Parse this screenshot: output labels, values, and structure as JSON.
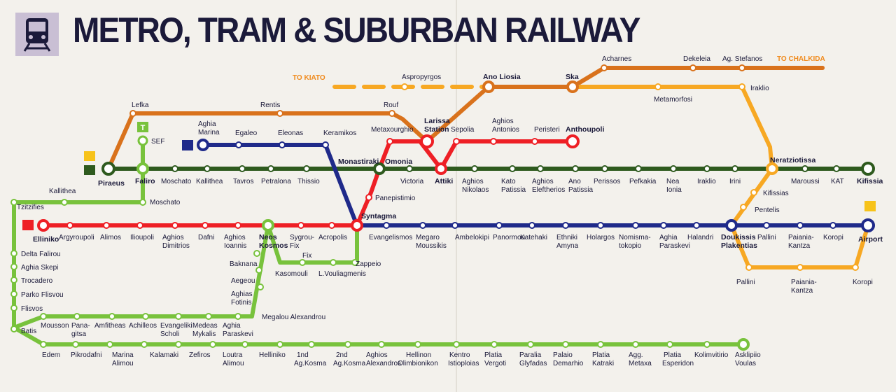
{
  "title": "METRO, TRAM & SUBURBAN RAILWAY",
  "colors": {
    "metro_line_1": "#2e5a1e",
    "metro_line_2": "#ee1f25",
    "metro_line_3": "#1f2a8a",
    "tram": "#78c23c",
    "suburban": "#f7a823",
    "suburban_west": "#d9721c",
    "background": "#f3f1ec"
  },
  "icons": [
    "train-icon",
    "tram-icon",
    "metro-icon"
  ],
  "tram_badge": "T",
  "stations": {
    "to_kiato": "TO KIATO",
    "to_chalkida": "TO CHALKIDA",
    "aspropyrgos": "Aspropyrgos",
    "ano_liosia": "Ano Liosia",
    "ska": "Ska",
    "acharnes": "Acharnes",
    "dekeleia": "Dekeleia",
    "ag_stefanos": "Ag. Stefanos",
    "metamorfosi": "Metamorfosi",
    "iraklio_sub": "Iraklio",
    "lefka": "Lefka",
    "rentis": "Rentis",
    "rouf": "Rouf",
    "larissa_1": "Larissa",
    "larissa_2": "Station",
    "sepolia": "Sepolia",
    "aghios_antonios_1": "Aghios",
    "aghios_antonios_2": "Antonios",
    "peristeri": "Peristeri",
    "anthoupoli": "Anthoupoli",
    "metaxourghio": "Metaxourghio",
    "aghia_marina_1": "Aghia",
    "aghia_marina_2": "Marina",
    "egaleo": "Egaleo",
    "eleonas": "Eleonas",
    "keramikos": "Keramikos",
    "sef": "SEF",
    "piraeus": "Piraeus",
    "faliro": "Faliro",
    "moschato": "Moschato",
    "kallithea": "Kallithea",
    "tavros": "Tavros",
    "petralona": "Petralona",
    "thissio": "Thissio",
    "monastiraki": "Monastiraki",
    "omonia": "Omonia",
    "victoria": "Victoria",
    "attiki": "Attiki",
    "aghios_nikolaos_1": "Aghios",
    "aghios_nikolaos_2": "Nikolaos",
    "kato_patissia_1": "Kato",
    "kato_patissia_2": "Patissia",
    "aghios_eleftherios_1": "Aghios",
    "aghios_eleftherios_2": "Eleftherios",
    "ano_patissia_1": "Ano",
    "ano_patissia_2": "Patissia",
    "perissos": "Perissos",
    "pefkakia": "Pefkakia",
    "nea_ionia_1": "Nea",
    "nea_ionia_2": "Ionia",
    "iraklio": "Iraklio",
    "irini": "Irini",
    "neratziotissa": "Neratziotissa",
    "maroussi": "Maroussi",
    "kat": "KAT",
    "kifissia": "Kifissia",
    "kifissias": "Kifissias",
    "pentelis": "Pentelis",
    "panepistimio": "Panepistimio",
    "syntagma": "Syntagma",
    "moschato_tram": "Moschato",
    "kallithea_tram": "Kallithea",
    "tzitzifies": "Tzitzifies",
    "elliniko": "Elliniko",
    "argyroupoli": "Argyroupoli",
    "alimos": "Alimos",
    "ilioupoli": "Ilioupoli",
    "aghios_dimitrios_1": "Aghios",
    "aghios_dimitrios_2": "Dimitrios",
    "dafni": "Dafni",
    "aghios_ioannis_1": "Aghios",
    "aghios_ioannis_2": "Ioannis",
    "neos_kosmos_1": "Neos",
    "neos_kosmos_2": "Kosmos",
    "sygrou_fix_1": "Sygrou-",
    "sygrou_fix_2": "Fix",
    "acropolis": "Acropolis",
    "fix": "Fix",
    "kasomouli": "Kasomouli",
    "l_vouliagmenis": "L.Vouliagmenis",
    "zappeio": "Zappeio",
    "evangelismos": "Evangelismos",
    "megaro_moussikis_1": "Megaro",
    "megaro_moussikis_2": "Moussikis",
    "ambelokipi": "Ambelokipi",
    "panormou": "Panormou",
    "katehaki": "Katehaki",
    "ethniki_amyna_1": "Ethniki",
    "ethniki_amyna_2": "Amyna",
    "holargos": "Holargos",
    "nomismatokopio_1": "Nomisma-",
    "nomismatokopio_2": "tokopio",
    "aghia_paraskevi_1": "Aghia",
    "aghia_paraskevi_2": "Paraskevi",
    "halandri": "Halandri",
    "doukissis_1": "Doukissis",
    "doukissis_2": "Plakentias",
    "pallini": "Pallini",
    "paiania_1": "Paiania-",
    "paiania_2": "Kantza",
    "koropi": "Koropi",
    "airport": "Airport",
    "pallini_sub": "Pallini",
    "paiania_sub_1": "Paiania-",
    "paiania_sub_2": "Kantza",
    "koropi_sub": "Koropi",
    "delta_falirou": "Delta Falirou",
    "aghia_skepi": "Aghia Skepi",
    "trocadero": "Trocadero",
    "parko_flisvou": "Parko Flisvou",
    "flisvos": "Flisvos",
    "batis": "Batis",
    "baknana": "Baknana",
    "aegeou": "Aegeou",
    "aghias_fotinis_1": "Aghias",
    "aghias_fotinis_2": "Fotinis",
    "megalou_alexandrou": "Megalou Alexandrou",
    "mousson": "Mousson",
    "panagitsa_1": "Pana-",
    "panagitsa_2": "gitsa",
    "amfitheas": "Amfitheas",
    "achilleos": "Achilleos",
    "evangeliki_1": "Evangeliki",
    "evangeliki_2": "Scholi",
    "medeas_1": "Medeas",
    "medeas_2": "Mykalis",
    "aghia_par_tram_1": "Aghia",
    "aghia_par_tram_2": "Paraskevi",
    "edem": "Edem",
    "pikrodafni": "Pikrodafni",
    "marina_alimou_1": "Marina",
    "marina_alimou_2": "Alimou",
    "kalamaki": "Kalamaki",
    "zefiros": "Zefiros",
    "loutra_1": "Loutra",
    "loutra_2": "Alimou",
    "helliniko": "Helliniko",
    "kosma1_1": "1nd",
    "kosma1_2": "Ag.Kosma",
    "kosma2_1": "2nd",
    "kosma2_2": "Ag.Kosma",
    "ag_alexandros_1": "Aghios",
    "ag_alexandros_2": "Alexandros",
    "hellinon_1": "Hellinon",
    "hellinon_2": "Olimbionikon",
    "kentro_1": "Kentro",
    "kentro_2": "Istioploias",
    "platia_vergoti_1": "Platia",
    "platia_vergoti_2": "Vergoti",
    "paralia_1": "Paralia",
    "paralia_2": "Glyfadas",
    "palaio_1": "Palaio",
    "palaio_2": "Demarhio",
    "platia_katraki_1": "Platia",
    "platia_katraki_2": "Katraki",
    "agg_metaxa_1": "Agg.",
    "agg_metaxa_2": "Metaxa",
    "platia_esperidon_1": "Platia",
    "platia_esperidon_2": "Esperidon",
    "kolimvitirio": "Kolimvitirio",
    "asklipiio_1": "Asklipiio",
    "asklipiio_2": "Voulas"
  }
}
